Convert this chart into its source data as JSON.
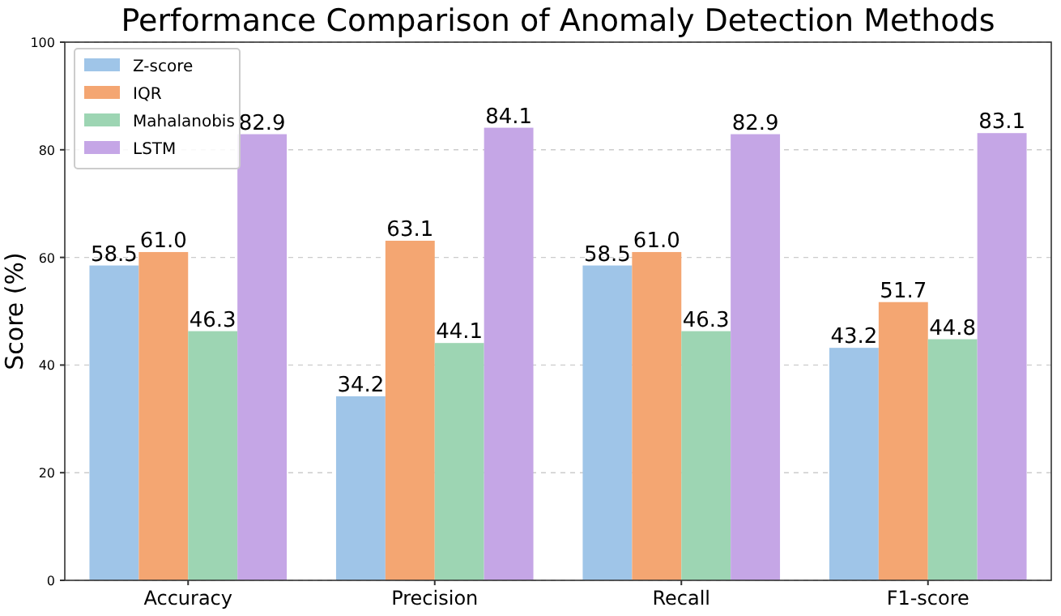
{
  "chart_data": {
    "type": "bar",
    "title": "Performance Comparison of Anomaly Detection Methods",
    "ylabel": "Score (%)",
    "categories": [
      "Accuracy",
      "Precision",
      "Recall",
      "F1-score"
    ],
    "series": [
      {
        "name": "Z-score",
        "color": "#9fc5e8",
        "values": [
          58.5,
          34.2,
          58.5,
          43.2
        ],
        "value_labels": [
          "58.5",
          "34.2",
          "58.5",
          "43.2"
        ]
      },
      {
        "name": "IQR",
        "color": "#f4a672",
        "values": [
          61.0,
          63.1,
          61.0,
          51.7
        ],
        "value_labels": [
          "61.0",
          "63.1",
          "61.0",
          "51.7"
        ]
      },
      {
        "name": "Mahalanobis",
        "color": "#9dd5b3",
        "values": [
          46.3,
          44.1,
          46.3,
          44.8
        ],
        "value_labels": [
          "46.3",
          "44.1",
          "46.3",
          "44.8"
        ]
      },
      {
        "name": "LSTM",
        "color": "#c5a6e6",
        "values": [
          82.9,
          84.1,
          82.9,
          83.1
        ],
        "value_labels": [
          "82.9",
          "84.1",
          "82.9",
          "83.1"
        ]
      }
    ],
    "ylim": [
      0,
      100
    ],
    "yticks": [
      0,
      20,
      40,
      60,
      80,
      100
    ],
    "grid": "y",
    "legend": "top left"
  }
}
